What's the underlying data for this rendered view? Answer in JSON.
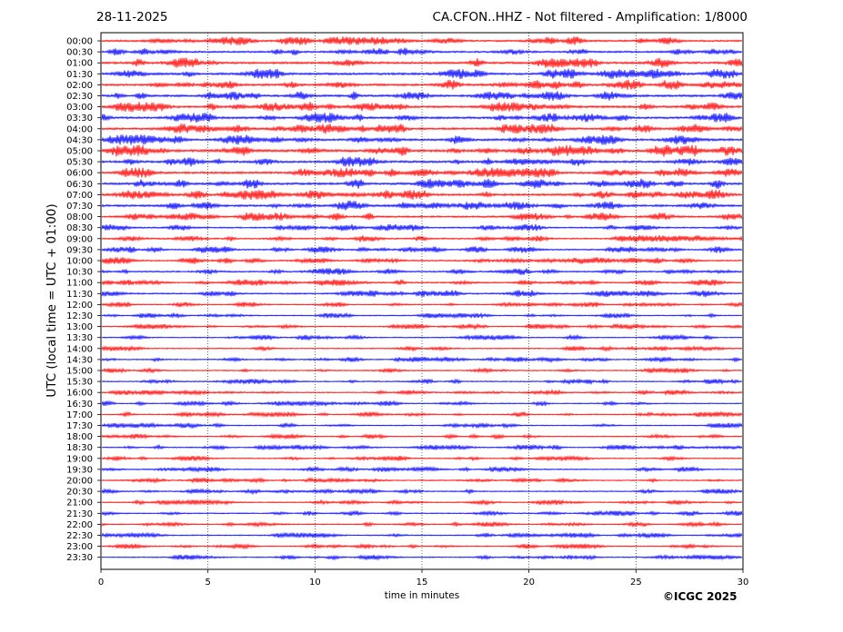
{
  "header": {
    "date": "28-11-2025",
    "title": "CA.CFON..HHZ - Not filtered - Amplification: 1/8000"
  },
  "footer": {
    "copyright": "©ICGC 2025"
  },
  "chart_data": {
    "type": "line",
    "title": "CA.CFON..HHZ - Not filtered - Amplification: 1/8000",
    "xlabel": "time in minutes",
    "ylabel": "UTC (local time = UTC + 01:00)",
    "xlim": [
      0,
      30
    ],
    "xticks": [
      0,
      5,
      10,
      15,
      20,
      25,
      30
    ],
    "grid": "vertical dotted lines at x ticks",
    "trace_colors": [
      "#ff0000",
      "#0000ff"
    ],
    "rows": [
      "00:00",
      "00:30",
      "01:00",
      "01:30",
      "02:00",
      "02:30",
      "03:00",
      "03:30",
      "04:00",
      "04:30",
      "05:00",
      "05:30",
      "06:00",
      "06:30",
      "07:00",
      "07:30",
      "08:00",
      "08:30",
      "09:00",
      "09:30",
      "10:00",
      "10:30",
      "11:00",
      "11:30",
      "12:00",
      "12:30",
      "13:00",
      "13:30",
      "14:00",
      "14:30",
      "15:00",
      "15:30",
      "16:00",
      "16:30",
      "17:00",
      "17:30",
      "18:00",
      "18:30",
      "19:00",
      "19:30",
      "20:00",
      "20:30",
      "21:00",
      "21:30",
      "22:00",
      "22:30",
      "23:00",
      "23:30"
    ],
    "amplitude_profile": [
      5,
      5,
      6,
      6,
      6,
      6,
      6,
      6,
      6,
      6,
      7,
      6,
      6,
      6,
      6,
      6,
      5,
      4,
      4,
      4,
      4,
      4,
      4,
      4,
      3,
      3,
      3,
      3,
      3,
      3,
      3,
      3,
      3,
      3,
      3,
      3,
      3,
      3,
      3,
      3,
      3,
      3,
      3,
      3,
      3,
      3,
      3,
      3
    ]
  }
}
